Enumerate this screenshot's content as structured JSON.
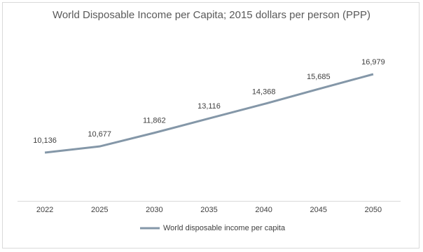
{
  "chart_data": {
    "type": "line",
    "title": "World Disposable Income per Capita; 2015 dollars per person (PPP)",
    "categories": [
      "2022",
      "2025",
      "2030",
      "2035",
      "2040",
      "2045",
      "2050"
    ],
    "series": [
      {
        "name": "World disposable income per capita",
        "color": "#8497a8",
        "values": [
          10136,
          10677,
          11862,
          13116,
          14368,
          15685,
          16979
        ],
        "value_labels": [
          "10,136",
          "10,677",
          "11,862",
          "13,116",
          "14,368",
          "15,685",
          "16,979"
        ]
      }
    ],
    "legend": "bottom"
  }
}
